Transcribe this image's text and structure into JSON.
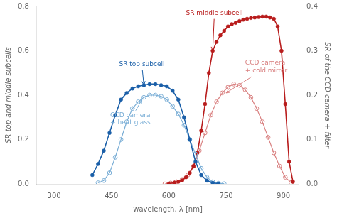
{
  "chart_data": {
    "type": "line",
    "xlabel": "wavelength, λ [nm]",
    "ylabel": "SR top and middle subcells",
    "y2label": "SR of the CCD camera + filter",
    "xlim": [
      255,
      940
    ],
    "xticks": [
      300,
      450,
      600,
      750,
      900
    ],
    "ylim": [
      0.0,
      0.8
    ],
    "yticks": [
      {
        "value": 0.0,
        "label": "0.0"
      },
      0.2,
      0.4,
      0.6,
      0.8
    ],
    "y2lim": [
      0.0,
      0.4
    ],
    "y2ticks": [
      {
        "value": 0.0,
        "label": "0.0"
      },
      0.1,
      0.2,
      0.3,
      0.4
    ],
    "grid": false,
    "series": [
      {
        "color": "#1a5fa8",
        "marker": "circle",
        "axis": "y",
        "x": [
          400,
          415,
          430,
          445,
          460,
          475,
          490,
          505,
          520,
          535,
          550,
          565,
          580,
          595,
          610,
          625,
          640,
          655,
          670,
          685,
          700,
          715,
          730
        ],
        "values": [
          0.04,
          0.09,
          0.15,
          0.23,
          0.31,
          0.38,
          0.41,
          0.43,
          0.44,
          0.445,
          0.45,
          0.45,
          0.445,
          0.44,
          0.42,
          0.38,
          0.3,
          0.2,
          0.1,
          0.04,
          0.015,
          0.005,
          0.001
        ]
      },
      {
        "color": "#7aaed6",
        "marker": "open_circle",
        "axis": "y",
        "x": [
          415,
          430,
          445,
          460,
          475,
          490,
          505,
          520,
          535,
          550,
          565,
          580,
          595,
          610,
          625,
          640,
          655,
          670,
          685,
          700,
          715,
          730,
          745
        ],
        "values": [
          0.005,
          0.015,
          0.05,
          0.12,
          0.2,
          0.28,
          0.34,
          0.37,
          0.39,
          0.4,
          0.4,
          0.395,
          0.38,
          0.35,
          0.315,
          0.265,
          0.2,
          0.135,
          0.07,
          0.03,
          0.01,
          0.003,
          0.001
        ]
      },
      {
        "color": "#b81c1c",
        "marker": "circle",
        "axis": "y2",
        "x": [
          600,
          615,
          625,
          635,
          645,
          655,
          665,
          675,
          685,
          695,
          705,
          715,
          725,
          735,
          745,
          755,
          765,
          775,
          785,
          795,
          805,
          815,
          825,
          835,
          845,
          855,
          865,
          875,
          885,
          895,
          905,
          915,
          925
        ],
        "values": [
          0.0,
          0.003,
          0.005,
          0.008,
          0.015,
          0.025,
          0.04,
          0.07,
          0.12,
          0.18,
          0.25,
          0.3,
          0.32,
          0.335,
          0.345,
          0.355,
          0.36,
          0.363,
          0.367,
          0.37,
          0.372,
          0.374,
          0.375,
          0.376,
          0.377,
          0.377,
          0.375,
          0.372,
          0.355,
          0.3,
          0.18,
          0.05,
          0.005
        ]
      },
      {
        "color": "#d98080",
        "marker": "open_circle",
        "axis": "y2",
        "x": [
          590,
          605,
          620,
          635,
          650,
          665,
          680,
          695,
          710,
          725,
          740,
          755,
          770,
          785,
          800,
          815,
          830,
          845,
          860,
          875,
          890,
          905,
          920
        ],
        "values": [
          0.0,
          0.002,
          0.005,
          0.01,
          0.02,
          0.04,
          0.075,
          0.115,
          0.155,
          0.185,
          0.205,
          0.218,
          0.225,
          0.222,
          0.212,
          0.195,
          0.17,
          0.14,
          0.105,
          0.07,
          0.04,
          0.015,
          0.003
        ]
      }
    ],
    "annotations": [
      {
        "text": "SR top subcell",
        "x": 535,
        "y": 0.445,
        "text_x": 470,
        "text_y": 0.52,
        "color": "#1a5fa8",
        "axis": "y"
      },
      {
        "text": "CCD camera\n+ heat glass",
        "x": 530,
        "y": 0.38,
        "text_x": 447,
        "text_y": 0.255,
        "color": "#7aaed6",
        "axis": "y"
      },
      {
        "text": "SR middle subcell",
        "x": 715,
        "y": 0.3,
        "text_x": 645,
        "text_y": 0.375,
        "color": "#b81c1c",
        "axis": "y2"
      },
      {
        "text": "CCD camera\n+ cold mirror",
        "x": 750,
        "y": 0.205,
        "text_x": 800,
        "text_y": 0.245,
        "color": "#d98080",
        "axis": "y2"
      }
    ]
  }
}
